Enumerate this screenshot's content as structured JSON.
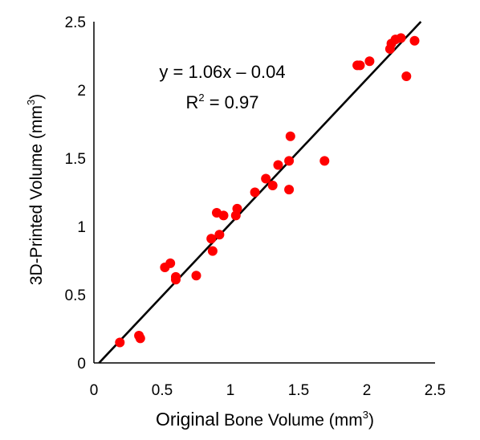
{
  "chart_data": {
    "type": "scatter",
    "xlabel_parts": [
      "Original",
      " Bone Volume (mm",
      "3",
      ")"
    ],
    "ylabel_parts": [
      "3D-Printed Volume (mm",
      "3",
      ")"
    ],
    "xlim": [
      0,
      2.5
    ],
    "ylim": [
      0,
      2.5
    ],
    "xticks": [
      "0",
      "0.5",
      "1",
      "1.5",
      "2",
      "2.5"
    ],
    "yticks": [
      "0",
      "0.5",
      "1",
      "1.5",
      "2",
      "2.5"
    ],
    "grid": false,
    "point_color": "#ff0000",
    "line_color": "#000000",
    "fit_line": {
      "slope": 1.06,
      "intercept": -0.04
    },
    "annotations": {
      "equation": "y = 1.06x – 0.04",
      "r2_prefix": "R",
      "r2_sup": "2",
      "r2_value": " = 0.97"
    },
    "points": [
      {
        "x": 0.19,
        "y": 0.15
      },
      {
        "x": 0.33,
        "y": 0.2
      },
      {
        "x": 0.34,
        "y": 0.18
      },
      {
        "x": 0.52,
        "y": 0.7
      },
      {
        "x": 0.56,
        "y": 0.73
      },
      {
        "x": 0.6,
        "y": 0.61
      },
      {
        "x": 0.6,
        "y": 0.63
      },
      {
        "x": 0.75,
        "y": 0.64
      },
      {
        "x": 0.86,
        "y": 0.91
      },
      {
        "x": 0.87,
        "y": 0.82
      },
      {
        "x": 0.9,
        "y": 1.1
      },
      {
        "x": 0.92,
        "y": 0.94
      },
      {
        "x": 0.95,
        "y": 1.08
      },
      {
        "x": 1.04,
        "y": 1.08
      },
      {
        "x": 1.05,
        "y": 1.13
      },
      {
        "x": 1.18,
        "y": 1.25
      },
      {
        "x": 1.26,
        "y": 1.35
      },
      {
        "x": 1.31,
        "y": 1.3
      },
      {
        "x": 1.35,
        "y": 1.45
      },
      {
        "x": 1.43,
        "y": 1.48
      },
      {
        "x": 1.43,
        "y": 1.27
      },
      {
        "x": 1.44,
        "y": 1.66
      },
      {
        "x": 1.69,
        "y": 1.48
      },
      {
        "x": 1.93,
        "y": 2.18
      },
      {
        "x": 1.95,
        "y": 2.18
      },
      {
        "x": 2.02,
        "y": 2.21
      },
      {
        "x": 2.17,
        "y": 2.3
      },
      {
        "x": 2.18,
        "y": 2.34
      },
      {
        "x": 2.21,
        "y": 2.37
      },
      {
        "x": 2.25,
        "y": 2.38
      },
      {
        "x": 2.29,
        "y": 2.1
      },
      {
        "x": 2.35,
        "y": 2.36
      }
    ]
  }
}
